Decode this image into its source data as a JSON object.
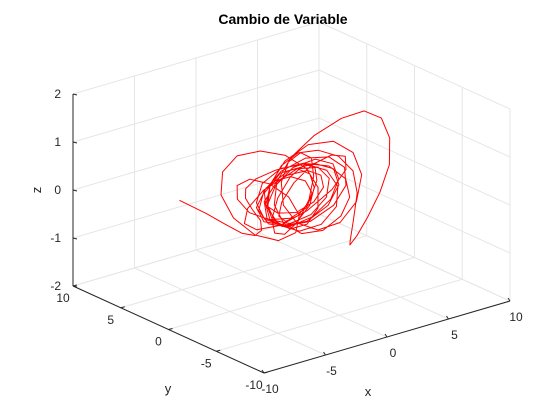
{
  "chart_data": {
    "type": "line",
    "projection": "3d",
    "title": "Cambio de Variable",
    "xlabel": "x",
    "ylabel": "y",
    "zlabel": "z",
    "xlim": [
      -10,
      10
    ],
    "ylim": [
      -10,
      10
    ],
    "zlim": [
      -2,
      2
    ],
    "xticks": [
      "-10",
      "-5",
      "0",
      "5",
      "10"
    ],
    "yticks": [
      "-10",
      "-5",
      "0",
      "5",
      "10"
    ],
    "zticks": [
      "-2",
      "-1",
      "0",
      "1",
      "2"
    ],
    "grid": true,
    "series": [
      {
        "color": "#ff0000",
        "points": [
          [
            -4.6,
            5.8,
            -0.24
          ],
          [
            -3.1,
            4.9,
            -0.55
          ],
          [
            -1.9,
            4.6,
            -0.82
          ],
          [
            -0.7,
            4.3,
            -1.08
          ],
          [
            -0.1,
            3.7,
            -1.12
          ],
          [
            -0.1,
            3.0,
            -0.95
          ],
          [
            -0.8,
            2.2,
            -0.62
          ],
          [
            -2.1,
            1.4,
            -0.22
          ],
          [
            -3.2,
            0.7,
            0.16
          ],
          [
            -3.8,
            -0.1,
            0.48
          ],
          [
            -3.6,
            -0.9,
            0.74
          ],
          [
            -2.6,
            -1.7,
            0.92
          ],
          [
            -0.9,
            -2.4,
            1.0
          ],
          [
            0.8,
            -2.9,
            0.86
          ],
          [
            2.0,
            -3.1,
            0.52
          ],
          [
            2.4,
            -3.0,
            0.1
          ],
          [
            2.0,
            -2.6,
            -0.3
          ],
          [
            1.0,
            -2.0,
            -0.58
          ],
          [
            -0.2,
            -1.3,
            -0.62
          ],
          [
            -1.1,
            -0.6,
            -0.4
          ],
          [
            -1.4,
            0.0,
            -0.05
          ],
          [
            -0.8,
            0.5,
            0.35
          ],
          [
            0.6,
            0.8,
            0.72
          ],
          [
            2.4,
            0.7,
            1.05
          ],
          [
            4.3,
            0.3,
            1.3
          ],
          [
            5.6,
            -0.4,
            1.42
          ],
          [
            6.3,
            -1.3,
            1.3
          ],
          [
            6.2,
            -2.3,
            0.98
          ],
          [
            5.4,
            -3.3,
            0.58
          ],
          [
            4.0,
            -4.1,
            0.18
          ],
          [
            2.7,
            -4.5,
            -0.2
          ],
          [
            1.9,
            -4.4,
            -0.54
          ],
          [
            1.8,
            -3.8,
            -0.78
          ],
          [
            2.6,
            -2.8,
            -0.84
          ],
          [
            3.8,
            -1.6,
            -0.6
          ],
          [
            4.8,
            -0.7,
            -0.2
          ],
          [
            5.0,
            0.0,
            0.18
          ],
          [
            4.2,
            0.5,
            0.5
          ],
          [
            2.7,
            0.7,
            0.72
          ],
          [
            1.0,
            0.6,
            0.8
          ],
          [
            -0.6,
            0.3,
            0.68
          ],
          [
            -1.8,
            -0.1,
            0.4
          ],
          [
            -2.4,
            -0.4,
            0.06
          ],
          [
            -2.2,
            -0.6,
            -0.26
          ],
          [
            -1.2,
            -0.6,
            -0.46
          ],
          [
            0.2,
            -0.4,
            -0.46
          ],
          [
            1.4,
            -0.1,
            -0.26
          ],
          [
            2.0,
            0.2,
            0.04
          ],
          [
            1.8,
            0.4,
            0.32
          ],
          [
            0.8,
            0.5,
            0.5
          ],
          [
            -0.6,
            0.4,
            0.52
          ],
          [
            -1.7,
            0.1,
            0.34
          ],
          [
            -2.2,
            -0.3,
            0.04
          ],
          [
            -1.9,
            -0.7,
            -0.28
          ],
          [
            -0.9,
            -1.0,
            -0.5
          ],
          [
            0.5,
            -1.0,
            -0.5
          ],
          [
            1.6,
            -0.7,
            -0.28
          ],
          [
            2.0,
            -0.2,
            0.08
          ],
          [
            1.5,
            0.4,
            0.46
          ],
          [
            0.2,
            0.9,
            0.78
          ],
          [
            -1.6,
            1.2,
            0.98
          ],
          [
            -3.5,
            1.2,
            1.02
          ],
          [
            -4.9,
            0.9,
            0.82
          ],
          [
            -5.5,
            0.3,
            0.44
          ],
          [
            -5.1,
            -0.5,
            0.0
          ],
          [
            -3.9,
            -1.2,
            -0.38
          ],
          [
            -2.3,
            -1.6,
            -0.58
          ],
          [
            -0.9,
            -1.6,
            -0.52
          ],
          [
            -0.3,
            -1.2,
            -0.24
          ],
          [
            -0.7,
            -0.6,
            0.12
          ],
          [
            -1.8,
            0.0,
            0.42
          ],
          [
            -3.0,
            0.5,
            0.56
          ],
          [
            -3.8,
            0.8,
            0.46
          ],
          [
            -3.7,
            0.9,
            0.16
          ],
          [
            -2.8,
            0.8,
            -0.18
          ],
          [
            -1.4,
            0.5,
            -0.4
          ],
          [
            0.0,
            0.1,
            -0.44
          ],
          [
            1.0,
            -0.3,
            -0.26
          ],
          [
            1.2,
            -0.6,
            0.06
          ],
          [
            0.5,
            -0.8,
            0.38
          ],
          [
            -0.7,
            -0.8,
            0.56
          ],
          [
            -1.8,
            -0.5,
            0.52
          ],
          [
            -2.2,
            0.0,
            0.26
          ],
          [
            -1.7,
            0.5,
            -0.08
          ],
          [
            -0.5,
            0.8,
            -0.36
          ],
          [
            1.0,
            0.8,
            -0.46
          ],
          [
            2.2,
            0.5,
            -0.3
          ],
          [
            2.6,
            0.0,
            0.02
          ],
          [
            2.0,
            -0.5,
            0.36
          ],
          [
            0.6,
            -0.9,
            0.6
          ],
          [
            -1.2,
            -1.0,
            0.64
          ],
          [
            -2.9,
            -0.8,
            0.44
          ],
          [
            -3.8,
            -0.3,
            0.08
          ],
          [
            -3.6,
            0.3,
            -0.3
          ],
          [
            -2.2,
            0.8,
            -0.58
          ],
          [
            -0.1,
            1.0,
            -0.66
          ],
          [
            2.0,
            0.9,
            -0.5
          ],
          [
            3.6,
            0.4,
            -0.14
          ],
          [
            4.2,
            -0.3,
            0.3
          ],
          [
            3.6,
            -1.0,
            0.68
          ],
          [
            2.0,
            -1.6,
            0.88
          ],
          [
            0.2,
            -1.9,
            0.84
          ],
          [
            -1.2,
            -1.8,
            0.56
          ],
          [
            -1.8,
            -1.3,
            0.16
          ],
          [
            -1.5,
            -0.6,
            -0.22
          ],
          [
            -0.4,
            0.1,
            -0.48
          ],
          [
            1.1,
            0.7,
            -0.52
          ],
          [
            2.4,
            1.1,
            -0.32
          ],
          [
            3.0,
            1.2,
            0.02
          ],
          [
            2.6,
            0.9,
            0.36
          ],
          [
            1.3,
            0.3,
            0.56
          ],
          [
            -0.4,
            -0.4,
            0.5
          ],
          [
            -1.9,
            -1.0,
            0.22
          ],
          [
            -2.6,
            -1.3,
            -0.14
          ],
          [
            -2.3,
            -1.2,
            -0.46
          ],
          [
            -1.1,
            -0.7,
            -0.62
          ],
          [
            0.6,
            0.1,
            -0.56
          ],
          [
            2.2,
            1.0,
            -0.3
          ],
          [
            3.2,
            1.8,
            0.04
          ],
          [
            3.4,
            2.3,
            0.36
          ],
          [
            2.6,
            2.4,
            0.52
          ],
          [
            1.3,
            2.0,
            0.46
          ],
          [
            0.1,
            1.2,
            0.2
          ],
          [
            -0.5,
            0.2,
            -0.14
          ],
          [
            -0.2,
            -0.8,
            -0.44
          ],
          [
            0.9,
            -1.6,
            -0.6
          ],
          [
            2.4,
            -2.0,
            -0.52
          ],
          [
            3.8,
            -1.9,
            -0.2
          ],
          [
            4.7,
            -1.3,
            0.24
          ],
          [
            4.7,
            -0.4,
            0.62
          ],
          [
            3.8,
            0.5,
            0.84
          ],
          [
            2.3,
            1.2,
            0.82
          ],
          [
            0.7,
            1.6,
            0.56
          ],
          [
            -0.5,
            1.6,
            0.16
          ],
          [
            -1.0,
            1.2,
            -0.26
          ],
          [
            -0.6,
            0.5,
            -0.58
          ],
          [
            0.5,
            -0.2,
            -0.72
          ],
          [
            1.8,
            -0.8,
            -0.62
          ],
          [
            2.8,
            -1.1,
            -0.3
          ],
          [
            3.0,
            -1.0,
            0.1
          ],
          [
            2.4,
            -0.6,
            0.44
          ],
          [
            1.1,
            0.0,
            0.62
          ],
          [
            -0.4,
            0.6,
            0.58
          ],
          [
            -1.6,
            1.0,
            0.32
          ],
          [
            -2.0,
            1.1,
            -0.06
          ],
          [
            -1.5,
            0.9,
            -0.42
          ],
          [
            -0.2,
            0.4,
            -0.62
          ],
          [
            1.4,
            -0.2,
            -0.58
          ],
          [
            2.8,
            -0.8,
            -0.3
          ],
          [
            3.5,
            -1.2,
            0.1
          ],
          [
            3.3,
            -1.3,
            0.5
          ],
          [
            2.2,
            -1.1,
            0.78
          ],
          [
            0.6,
            -0.7,
            0.84
          ],
          [
            -1.0,
            -0.2,
            0.64
          ],
          [
            -2.0,
            0.3,
            0.26
          ],
          [
            -2.2,
            0.6,
            -0.16
          ],
          [
            -1.4,
            0.6,
            -0.5
          ],
          [
            0.0,
            0.3,
            -0.64
          ],
          [
            1.6,
            -0.1,
            -0.52
          ],
          [
            2.8,
            -0.5,
            -0.2
          ],
          [
            3.3,
            -0.7,
            0.2
          ],
          [
            2.9,
            -0.6,
            0.54
          ],
          [
            1.7,
            -0.3,
            0.7
          ],
          [
            0.2,
            0.1,
            0.6
          ],
          [
            -1.0,
            0.4,
            0.28
          ],
          [
            -1.6,
            0.5,
            -0.1
          ],
          [
            -1.3,
            0.3,
            -0.4
          ],
          [
            -0.2,
            -0.1,
            -0.52
          ],
          [
            1.2,
            -0.5,
            -0.4
          ],
          [
            2.3,
            -0.7,
            -0.1
          ],
          [
            2.6,
            -0.6,
            0.26
          ],
          [
            2.0,
            -0.2,
            0.5
          ],
          [
            0.7,
            0.3,
            0.52
          ],
          [
            -0.7,
            0.7,
            0.3
          ],
          [
            -1.6,
            0.8,
            -0.04
          ],
          [
            -1.6,
            0.5,
            -0.36
          ],
          [
            -0.7,
            0.0,
            -0.54
          ],
          [
            0.8,
            -0.6,
            -0.5
          ],
          [
            2.2,
            -1.0,
            -0.24
          ],
          [
            3.0,
            -1.1,
            0.14
          ],
          [
            2.8,
            -0.8,
            0.46
          ],
          [
            1.7,
            -0.2,
            0.6
          ],
          [
            0.1,
            0.5,
            0.5
          ],
          [
            -1.3,
            1.0,
            0.2
          ],
          [
            -2.0,
            1.1,
            -0.16
          ],
          [
            -1.7,
            0.7,
            -0.44
          ],
          [
            -0.5,
            0.1,
            -0.54
          ]
        ]
      }
    ]
  }
}
